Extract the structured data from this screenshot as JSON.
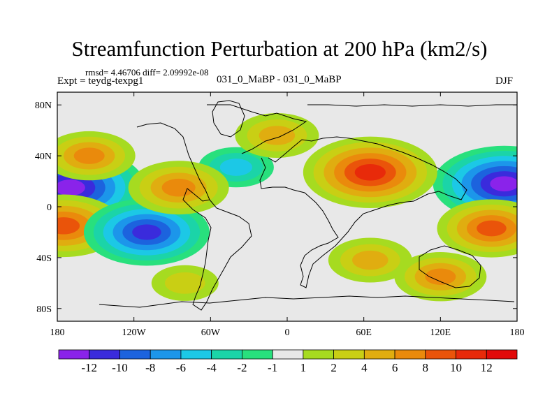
{
  "title": "Streamfunction Perturbation at 200 hPa (km2/s)",
  "stats": "rmsd= 4.46706 diff= 2.09992e-08",
  "experiment": "Expt = teydg-texpg1",
  "comparison": "031_0_MaBP - 031_0_MaBP",
  "season": "DJF",
  "chart_data": {
    "type": "heatmap",
    "title": "Streamfunction Perturbation at 200 hPa (km2/s)",
    "x_ticks": [
      "180",
      "120W",
      "60W",
      "0",
      "60E",
      "120E",
      "180"
    ],
    "x_values": [
      -180,
      -120,
      -60,
      0,
      60,
      120,
      180
    ],
    "y_ticks": [
      "80N",
      "40N",
      "0",
      "40S",
      "80S"
    ],
    "y_values": [
      80,
      40,
      0,
      -40,
      -80
    ],
    "xlim": [
      -180,
      180
    ],
    "ylim": [
      -90,
      90
    ],
    "colorbar": {
      "labels": [
        "-12",
        "-10",
        "-8",
        "-6",
        "-4",
        "-2",
        "-1",
        "1",
        "2",
        "4",
        "6",
        "8",
        "10",
        "12"
      ],
      "bounds": [
        -12,
        -10,
        -8,
        -6,
        -4,
        -2,
        -1,
        1,
        2,
        4,
        6,
        8,
        10,
        12
      ],
      "colors": [
        "#8a23ea",
        "#3a2bdc",
        "#1c63de",
        "#1c96ea",
        "#1cc8e6",
        "#1bd4a8",
        "#28e07d",
        "#e8e8e8",
        "#a6db20",
        "#c9cf14",
        "#e0ad10",
        "#ea8a0c",
        "#ea540a",
        "#e82a0a",
        "#e20a0a"
      ]
    },
    "features": [
      {
        "name": "min-1",
        "lon": -170,
        "lat": 15,
        "value": -13
      },
      {
        "name": "max-1",
        "lon": -175,
        "lat": -15,
        "value": 9
      },
      {
        "name": "min-2",
        "lon": -110,
        "lat": -20,
        "value": -10
      },
      {
        "name": "min-3",
        "lon": 170,
        "lat": 18,
        "value": -12
      },
      {
        "name": "max-2",
        "lon": 65,
        "lat": 27,
        "value": 11
      },
      {
        "name": "max-3",
        "lon": 160,
        "lat": -17,
        "value": 8
      },
      {
        "name": "min-4",
        "lon": -40,
        "lat": 31,
        "value": -4
      },
      {
        "name": "max-4",
        "lon": -85,
        "lat": 15,
        "value": 7
      },
      {
        "name": "max-5",
        "lon": -8,
        "lat": 56,
        "value": 5
      },
      {
        "name": "max-6",
        "lon": -155,
        "lat": 40,
        "value": 6
      },
      {
        "name": "max-7",
        "lon": 65,
        "lat": -42,
        "value": 5
      },
      {
        "name": "max-8",
        "lon": 120,
        "lat": -55,
        "value": 6
      },
      {
        "name": "max-9",
        "lon": -80,
        "lat": -60,
        "value": 3
      }
    ]
  }
}
